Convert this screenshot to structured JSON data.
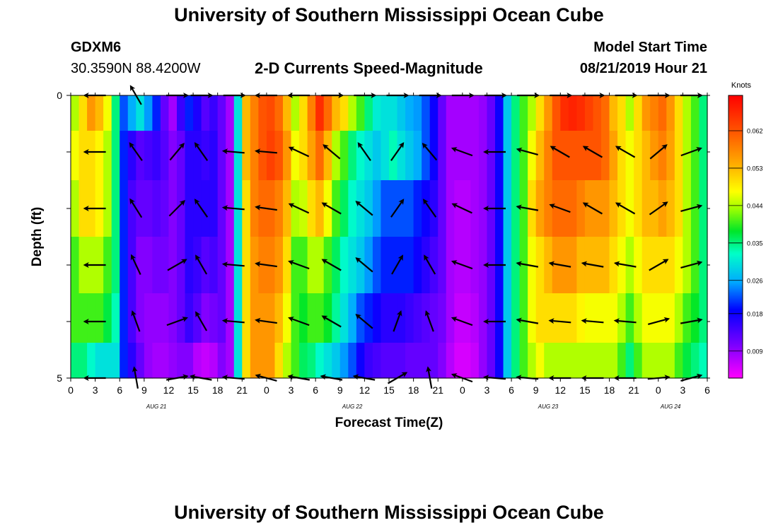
{
  "header": {
    "title_top": "University of Southern Mississippi Ocean Cube",
    "title_bottom": "University of Southern Mississippi Ocean Cube",
    "station_id": "GDXM6",
    "station_coords": "30.3590N 88.4200W",
    "plot_title": "2-D Currents Speed-Magnitude",
    "model_start_label": "Model Start Time",
    "model_start_value": "08/21/2019 Hour 21"
  },
  "chart_data": {
    "type": "heatmap",
    "title": "2-D Currents Speed-Magnitude",
    "xlabel": "Forecast Time(Z)",
    "ylabel": "Depth (ft)",
    "x_tick_labels": [
      "0",
      "3",
      "6",
      "9",
      "12",
      "15",
      "18",
      "21",
      "0",
      "3",
      "6",
      "9",
      "12",
      "15",
      "18",
      "21",
      "0",
      "3",
      "6",
      "9",
      "12",
      "15",
      "18",
      "21",
      "0",
      "3",
      "6"
    ],
    "x_range_hours": [
      0,
      78
    ],
    "date_labels": [
      {
        "label": "AUG 21",
        "hour": 10.5
      },
      {
        "label": "AUG 22",
        "hour": 34.5
      },
      {
        "label": "AUG 23",
        "hour": 58.5
      },
      {
        "label": "AUG 24",
        "hour": 73.5
      }
    ],
    "y_tick_labels": [
      "0",
      "5"
    ],
    "y_range_ft": [
      0,
      5
    ],
    "colorbar": {
      "title": "Knots",
      "ticks": [
        "0.062",
        "0.053",
        "0.044",
        "0.035",
        "0.026",
        "0.018",
        "0.009"
      ],
      "tick_values": [
        0.062,
        0.053,
        0.044,
        0.035,
        0.026,
        0.018,
        0.009
      ],
      "range": [
        0.0025,
        0.0705
      ]
    },
    "depth_rows_ft": [
      0.25,
      1.0,
      2.0,
      3.0,
      4.0,
      4.75
    ],
    "columns_hours": [
      0,
      1,
      2,
      3,
      4,
      5,
      6,
      7,
      8,
      9,
      10,
      11,
      12,
      13,
      14,
      15,
      16,
      17,
      18,
      19,
      20,
      21,
      22,
      23,
      24,
      25,
      26,
      27,
      28,
      29,
      30,
      31,
      32,
      33,
      34,
      35,
      36,
      37,
      38,
      39,
      40,
      41,
      42,
      43,
      44,
      45,
      46,
      47,
      48,
      49,
      50,
      51,
      52,
      53,
      54,
      55,
      56,
      57,
      58,
      59,
      60,
      61,
      62,
      63,
      64,
      65,
      66,
      67,
      68,
      69,
      70,
      71,
      72,
      73,
      74,
      75,
      76,
      77
    ],
    "speed_knots": [
      [
        0.044,
        0.05,
        0.056,
        0.053,
        0.047,
        0.035,
        0.022,
        0.026,
        0.03,
        0.025,
        0.02,
        0.012,
        0.008,
        0.015,
        0.02,
        0.017,
        0.013,
        0.015,
        0.012,
        0.008,
        0.03,
        0.053,
        0.058,
        0.062,
        0.063,
        0.06,
        0.053,
        0.044,
        0.05,
        0.058,
        0.066,
        0.06,
        0.053,
        0.05,
        0.044,
        0.04,
        0.035,
        0.031,
        0.03,
        0.03,
        0.028,
        0.026,
        0.025,
        0.022,
        0.018,
        0.012,
        0.008,
        0.008,
        0.008,
        0.008,
        0.009,
        0.012,
        0.018,
        0.028,
        0.035,
        0.04,
        0.044,
        0.05,
        0.056,
        0.062,
        0.066,
        0.067,
        0.066,
        0.064,
        0.062,
        0.06,
        0.053,
        0.05,
        0.044,
        0.05,
        0.056,
        0.058,
        0.06,
        0.056,
        0.05,
        0.044,
        0.04,
        0.035
      ],
      [
        0.047,
        0.05,
        0.05,
        0.048,
        0.044,
        0.035,
        0.02,
        0.016,
        0.013,
        0.014,
        0.015,
        0.013,
        0.01,
        0.012,
        0.016,
        0.016,
        0.015,
        0.016,
        0.012,
        0.008,
        0.03,
        0.053,
        0.058,
        0.062,
        0.064,
        0.062,
        0.056,
        0.047,
        0.05,
        0.055,
        0.06,
        0.053,
        0.044,
        0.04,
        0.035,
        0.032,
        0.03,
        0.028,
        0.03,
        0.033,
        0.03,
        0.028,
        0.026,
        0.022,
        0.018,
        0.012,
        0.008,
        0.008,
        0.008,
        0.008,
        0.009,
        0.012,
        0.018,
        0.028,
        0.035,
        0.04,
        0.047,
        0.053,
        0.058,
        0.062,
        0.062,
        0.062,
        0.062,
        0.062,
        0.062,
        0.06,
        0.055,
        0.05,
        0.047,
        0.05,
        0.053,
        0.056,
        0.058,
        0.055,
        0.05,
        0.044,
        0.04,
        0.035
      ],
      [
        0.044,
        0.05,
        0.05,
        0.048,
        0.044,
        0.035,
        0.02,
        0.014,
        0.012,
        0.012,
        0.013,
        0.012,
        0.01,
        0.012,
        0.016,
        0.016,
        0.016,
        0.016,
        0.012,
        0.008,
        0.03,
        0.05,
        0.058,
        0.06,
        0.06,
        0.058,
        0.053,
        0.044,
        0.045,
        0.05,
        0.053,
        0.047,
        0.04,
        0.036,
        0.032,
        0.03,
        0.028,
        0.025,
        0.022,
        0.022,
        0.022,
        0.022,
        0.02,
        0.018,
        0.016,
        0.012,
        0.008,
        0.007,
        0.007,
        0.008,
        0.009,
        0.012,
        0.018,
        0.028,
        0.035,
        0.04,
        0.05,
        0.055,
        0.058,
        0.06,
        0.06,
        0.06,
        0.058,
        0.056,
        0.056,
        0.056,
        0.053,
        0.05,
        0.047,
        0.05,
        0.053,
        0.053,
        0.055,
        0.053,
        0.05,
        0.044,
        0.04,
        0.035
      ],
      [
        0.04,
        0.044,
        0.044,
        0.044,
        0.04,
        0.035,
        0.02,
        0.014,
        0.01,
        0.01,
        0.011,
        0.011,
        0.01,
        0.012,
        0.016,
        0.015,
        0.013,
        0.014,
        0.012,
        0.008,
        0.03,
        0.05,
        0.056,
        0.058,
        0.058,
        0.056,
        0.05,
        0.04,
        0.04,
        0.044,
        0.044,
        0.04,
        0.036,
        0.032,
        0.03,
        0.028,
        0.025,
        0.022,
        0.02,
        0.02,
        0.02,
        0.02,
        0.018,
        0.016,
        0.014,
        0.012,
        0.008,
        0.007,
        0.007,
        0.008,
        0.009,
        0.012,
        0.018,
        0.028,
        0.035,
        0.04,
        0.047,
        0.05,
        0.053,
        0.056,
        0.056,
        0.056,
        0.053,
        0.053,
        0.053,
        0.053,
        0.05,
        0.047,
        0.044,
        0.047,
        0.05,
        0.05,
        0.05,
        0.05,
        0.047,
        0.044,
        0.04,
        0.035
      ],
      [
        0.04,
        0.04,
        0.04,
        0.04,
        0.037,
        0.033,
        0.02,
        0.014,
        0.01,
        0.009,
        0.009,
        0.009,
        0.01,
        0.012,
        0.015,
        0.013,
        0.01,
        0.011,
        0.012,
        0.008,
        0.03,
        0.05,
        0.056,
        0.056,
        0.056,
        0.053,
        0.047,
        0.04,
        0.038,
        0.04,
        0.04,
        0.038,
        0.034,
        0.03,
        0.026,
        0.022,
        0.02,
        0.018,
        0.016,
        0.016,
        0.016,
        0.015,
        0.014,
        0.013,
        0.012,
        0.011,
        0.008,
        0.006,
        0.006,
        0.007,
        0.009,
        0.012,
        0.018,
        0.028,
        0.035,
        0.04,
        0.047,
        0.05,
        0.05,
        0.05,
        0.05,
        0.05,
        0.048,
        0.047,
        0.047,
        0.047,
        0.047,
        0.044,
        0.04,
        0.044,
        0.047,
        0.047,
        0.047,
        0.047,
        0.044,
        0.04,
        0.038,
        0.035
      ],
      [
        0.035,
        0.035,
        0.032,
        0.03,
        0.03,
        0.03,
        0.02,
        0.016,
        0.012,
        0.009,
        0.008,
        0.008,
        0.009,
        0.01,
        0.01,
        0.007,
        0.006,
        0.007,
        0.01,
        0.008,
        0.03,
        0.05,
        0.056,
        0.056,
        0.056,
        0.05,
        0.044,
        0.04,
        0.036,
        0.035,
        0.032,
        0.03,
        0.028,
        0.025,
        0.022,
        0.018,
        0.015,
        0.014,
        0.013,
        0.013,
        0.013,
        0.012,
        0.012,
        0.012,
        0.012,
        0.01,
        0.007,
        0.005,
        0.005,
        0.006,
        0.009,
        0.012,
        0.018,
        0.028,
        0.035,
        0.04,
        0.044,
        0.047,
        0.044,
        0.044,
        0.044,
        0.044,
        0.044,
        0.044,
        0.044,
        0.044,
        0.044,
        0.04,
        0.035,
        0.04,
        0.044,
        0.044,
        0.044,
        0.044,
        0.04,
        0.037,
        0.035,
        0.033
      ]
    ],
    "vector_rows_ft": [
      0,
      1,
      2,
      3,
      4,
      5
    ],
    "vector_hours": [
      3,
      8,
      13,
      16,
      20,
      24,
      28,
      32,
      36,
      40,
      44,
      48,
      52,
      56,
      60,
      64,
      68,
      72,
      76
    ],
    "vector_direction_deg": [
      [
        180,
        120,
        0,
        0,
        0,
        180,
        180,
        0,
        0,
        0,
        0,
        0,
        0,
        0,
        0,
        0,
        0,
        0,
        0
      ],
      [
        180,
        125,
        50,
        125,
        175,
        175,
        155,
        140,
        125,
        55,
        130,
        160,
        180,
        165,
        150,
        150,
        150,
        40,
        20
      ],
      [
        180,
        122,
        45,
        125,
        175,
        172,
        155,
        150,
        140,
        55,
        125,
        155,
        180,
        170,
        160,
        150,
        150,
        35,
        15
      ],
      [
        180,
        115,
        30,
        120,
        175,
        172,
        160,
        150,
        140,
        60,
        120,
        160,
        180,
        170,
        170,
        170,
        170,
        30,
        15
      ],
      [
        180,
        110,
        20,
        120,
        175,
        172,
        160,
        150,
        140,
        70,
        110,
        160,
        180,
        170,
        175,
        175,
        175,
        15,
        10
      ],
      [
        180,
        100,
        10,
        170,
        175,
        165,
        170,
        170,
        170,
        30,
        100,
        160,
        175,
        175,
        180,
        180,
        180,
        5,
        15
      ]
    ]
  }
}
